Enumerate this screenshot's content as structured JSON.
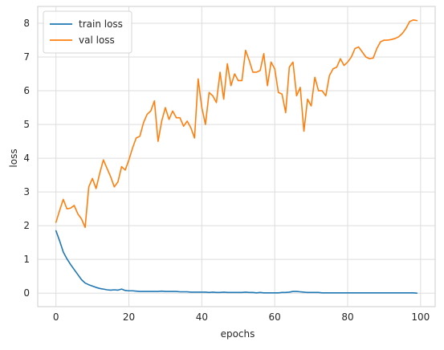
{
  "chart_data": {
    "type": "line",
    "title": "",
    "xlabel": "epochs",
    "ylabel": "loss",
    "xlim": [
      -5,
      104
    ],
    "ylim": [
      -0.4,
      8.5
    ],
    "xticks": [
      0,
      20,
      40,
      60,
      80,
      100
    ],
    "yticks": [
      0,
      1,
      2,
      3,
      4,
      5,
      6,
      7,
      8
    ],
    "grid": true,
    "legend_position": "upper-left",
    "x": [
      0,
      1,
      2,
      3,
      4,
      5,
      6,
      7,
      8,
      9,
      10,
      11,
      12,
      13,
      14,
      15,
      16,
      17,
      18,
      19,
      20,
      21,
      22,
      23,
      24,
      25,
      26,
      27,
      28,
      29,
      30,
      31,
      32,
      33,
      34,
      35,
      36,
      37,
      38,
      39,
      40,
      41,
      42,
      43,
      44,
      45,
      46,
      47,
      48,
      49,
      50,
      51,
      52,
      53,
      54,
      55,
      56,
      57,
      58,
      59,
      60,
      61,
      62,
      63,
      64,
      65,
      66,
      67,
      68,
      69,
      70,
      71,
      72,
      73,
      74,
      75,
      76,
      77,
      78,
      79,
      80,
      81,
      82,
      83,
      84,
      85,
      86,
      87,
      88,
      89,
      90,
      91,
      92,
      93,
      94,
      95,
      96,
      97,
      98,
      99
    ],
    "series": [
      {
        "name": "train loss",
        "color": "#1f77b4",
        "values": [
          1.85,
          1.55,
          1.22,
          1.02,
          0.85,
          0.7,
          0.55,
          0.4,
          0.3,
          0.25,
          0.21,
          0.17,
          0.14,
          0.12,
          0.1,
          0.09,
          0.1,
          0.09,
          0.12,
          0.08,
          0.07,
          0.07,
          0.06,
          0.05,
          0.05,
          0.05,
          0.05,
          0.05,
          0.05,
          0.06,
          0.05,
          0.05,
          0.05,
          0.05,
          0.04,
          0.04,
          0.04,
          0.03,
          0.03,
          0.03,
          0.03,
          0.03,
          0.02,
          0.03,
          0.02,
          0.02,
          0.03,
          0.02,
          0.02,
          0.02,
          0.02,
          0.02,
          0.03,
          0.02,
          0.02,
          0.01,
          0.02,
          0.01,
          0.01,
          0.01,
          0.01,
          0.01,
          0.02,
          0.02,
          0.03,
          0.05,
          0.05,
          0.04,
          0.03,
          0.02,
          0.02,
          0.02,
          0.02,
          0.01,
          0.01,
          0.01,
          0.01,
          0.01,
          0.01,
          0.01,
          0.01,
          0.01,
          0.01,
          0.01,
          0.01,
          0.01,
          0.01,
          0.01,
          0.01,
          0.01,
          0.01,
          0.01,
          0.01,
          0.01,
          0.01,
          0.01,
          0.01,
          0.01,
          0.01,
          0.0
        ]
      },
      {
        "name": "val loss",
        "color": "#ff7f0e",
        "values": [
          2.1,
          2.45,
          2.78,
          2.5,
          2.52,
          2.6,
          2.35,
          2.2,
          1.95,
          3.15,
          3.4,
          3.1,
          3.55,
          3.95,
          3.7,
          3.45,
          3.15,
          3.3,
          3.75,
          3.65,
          3.95,
          4.3,
          4.6,
          4.65,
          5.05,
          5.3,
          5.4,
          5.7,
          4.5,
          5.1,
          5.5,
          5.15,
          5.4,
          5.2,
          5.2,
          4.95,
          5.1,
          4.9,
          4.6,
          6.35,
          5.5,
          5.0,
          5.95,
          5.85,
          5.65,
          6.55,
          5.75,
          6.8,
          6.15,
          6.5,
          6.3,
          6.3,
          7.2,
          6.9,
          6.55,
          6.55,
          6.6,
          7.1,
          6.15,
          6.85,
          6.65,
          5.95,
          5.9,
          5.35,
          6.7,
          6.85,
          5.85,
          6.1,
          4.8,
          5.75,
          5.55,
          6.4,
          6.0,
          6.0,
          5.85,
          6.45,
          6.65,
          6.7,
          6.95,
          6.75,
          6.85,
          7.0,
          7.25,
          7.3,
          7.15,
          7.0,
          6.95,
          6.97,
          7.25,
          7.45,
          7.5,
          7.5,
          7.52,
          7.55,
          7.6,
          7.7,
          7.85,
          8.05,
          8.1,
          8.08
        ]
      }
    ]
  }
}
